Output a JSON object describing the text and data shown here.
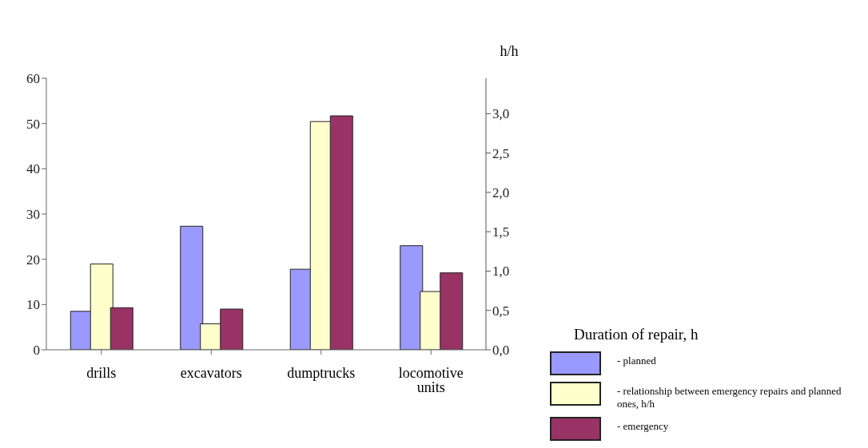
{
  "chart_data": {
    "type": "bar",
    "categories": [
      "drills",
      "excavators",
      "dumptrucks",
      "locomotive units"
    ],
    "series": [
      {
        "name": "- planned",
        "color": "#9999ff",
        "values": [
          8.5,
          27.3,
          17.8,
          23
        ]
      },
      {
        "name": "- relationship between emergency repairs and planned ones, h/h",
        "color": "#ffffcc",
        "values": [
          1.09,
          0.33,
          2.9,
          0.74
        ],
        "axis": "y2"
      },
      {
        "name": "- emergency",
        "color": "#993366",
        "values": [
          9.3,
          9,
          51.7,
          17
        ]
      }
    ],
    "legend_title": "Duration of repair, h",
    "y2label": "h/h",
    "ylim": [
      0,
      60
    ],
    "yticks": [
      0,
      10,
      20,
      30,
      40,
      50,
      60
    ],
    "y2lim": [
      0,
      3.45
    ],
    "y2ticks": [
      {
        "value": 0,
        "label": "0,0"
      },
      {
        "value": 0.5,
        "label": "0,5"
      },
      {
        "value": 1,
        "label": "1,0"
      },
      {
        "value": 1.5,
        "label": "1,5"
      },
      {
        "value": 2,
        "label": "2,0"
      },
      {
        "value": 2.5,
        "label": "2,5"
      },
      {
        "value": 3,
        "label": "3,0"
      }
    ],
    "grid": false,
    "legend": "bottom right"
  }
}
